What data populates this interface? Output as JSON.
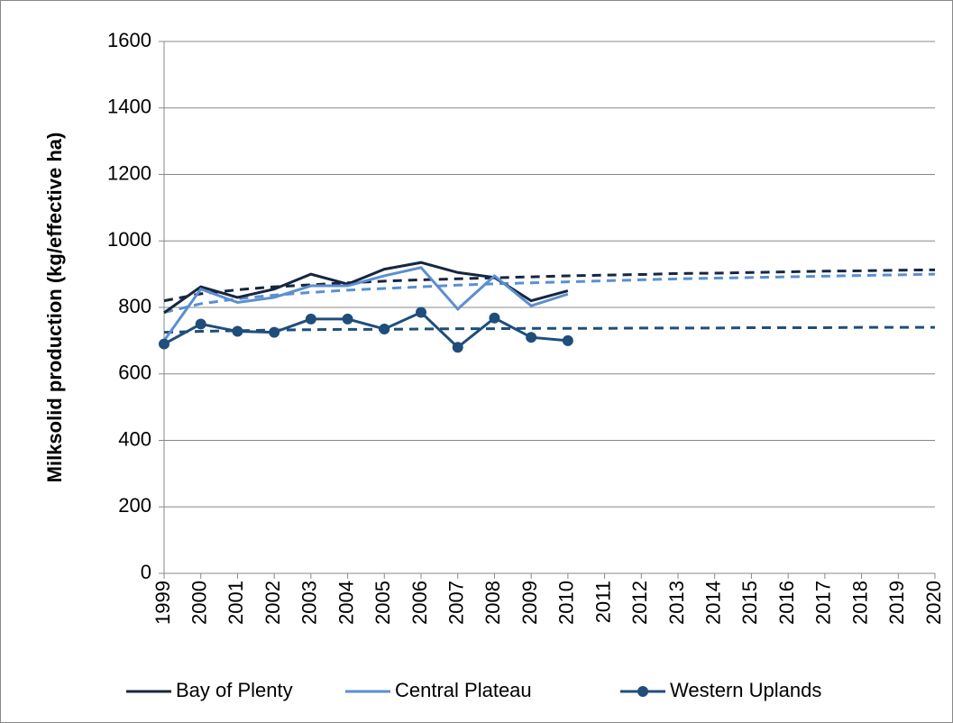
{
  "chart_data": {
    "type": "line",
    "y_label": "Milksolid production (kg/effective ha)",
    "categories": [
      "1999",
      "2000",
      "2001",
      "2002",
      "2003",
      "2004",
      "2005",
      "2006",
      "2007",
      "2008",
      "2009",
      "2010",
      "2011",
      "2012",
      "2013",
      "2014",
      "2015",
      "2016",
      "2017",
      "2018",
      "2019",
      "2020"
    ],
    "ylim": [
      0,
      1600
    ],
    "yticks": [
      0,
      200,
      400,
      600,
      800,
      1000,
      1200,
      1400,
      1600
    ],
    "grid": true,
    "legend": "bottom",
    "series": [
      {
        "name": "Bay of Plenty",
        "color": "#17263f",
        "marker": "none",
        "values": [
          784,
          862,
          830,
          855,
          900,
          870,
          915,
          935,
          905,
          890,
          820,
          850,
          null,
          null,
          null,
          null,
          null,
          null,
          null,
          null,
          null,
          null
        ],
        "trend": [
          820,
          841,
          853,
          862,
          868,
          874,
          879,
          883,
          886,
          889,
          892,
          895,
          897,
          899,
          902,
          903,
          905,
          907,
          909,
          910,
          912,
          913
        ]
      },
      {
        "name": "Central Plateau",
        "color": "#5b8fd0",
        "marker": "none",
        "values": [
          700,
          855,
          815,
          830,
          865,
          865,
          895,
          920,
          795,
          895,
          805,
          840,
          null,
          null,
          null,
          null,
          null,
          null,
          null,
          null,
          null,
          null
        ],
        "trend": [
          785,
          811,
          826,
          837,
          845,
          852,
          857,
          862,
          867,
          871,
          874,
          877,
          880,
          883,
          886,
          888,
          890,
          892,
          894,
          896,
          898,
          900
        ]
      },
      {
        "name": "Western Uplands",
        "color": "#1f4e7b",
        "marker": "circle",
        "values": [
          690,
          750,
          728,
          725,
          765,
          765,
          735,
          785,
          680,
          768,
          710,
          700,
          null,
          null,
          null,
          null,
          null,
          null,
          null,
          null,
          null,
          null
        ],
        "trend": [
          725,
          728,
          730,
          732,
          733,
          734,
          734,
          735,
          736,
          736,
          737,
          737,
          737,
          738,
          738,
          738,
          739,
          739,
          739,
          740,
          740,
          740
        ]
      }
    ]
  }
}
